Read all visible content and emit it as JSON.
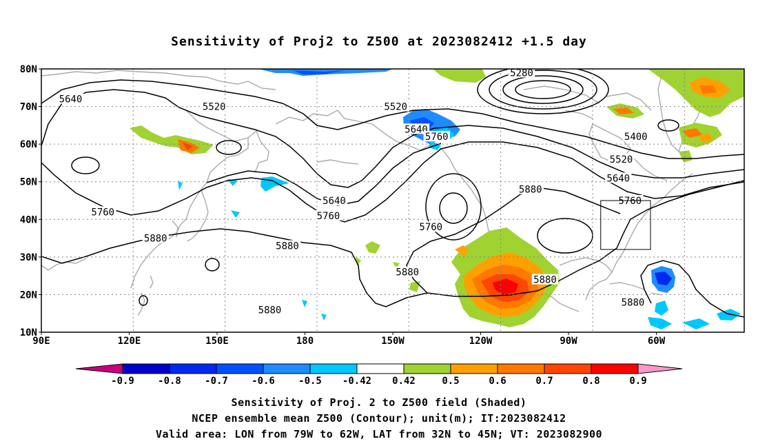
{
  "title": "Sensitivity of Proj2 to Z500 at 2023082412 +1.5 day",
  "axes": {
    "lat_labels": [
      "80N",
      "70N",
      "60N",
      "50N",
      "40N",
      "30N",
      "20N",
      "10N"
    ],
    "lon_labels": [
      "90E",
      "120E",
      "150E",
      "180",
      "150W",
      "120W",
      "90W",
      "60W"
    ]
  },
  "contour_labels": [
    {
      "text": "5280",
      "lon": -106,
      "lat": 79
    },
    {
      "text": "5520",
      "lon": 149,
      "lat": 70
    },
    {
      "text": "5520",
      "lon": -149,
      "lat": 70
    },
    {
      "text": "5640",
      "lon": 100,
      "lat": 72
    },
    {
      "text": "5640",
      "lon": -142,
      "lat": 64
    },
    {
      "text": "5760",
      "lon": -135,
      "lat": 62
    },
    {
      "text": "5400",
      "lon": -67,
      "lat": 62
    },
    {
      "text": "5520",
      "lon": -72,
      "lat": 56
    },
    {
      "text": "5640",
      "lon": -73,
      "lat": 51
    },
    {
      "text": "5760",
      "lon": -69,
      "lat": 45
    },
    {
      "text": "5880",
      "lon": -103,
      "lat": 48
    },
    {
      "text": "5640",
      "lon": -170,
      "lat": 45
    },
    {
      "text": "5760",
      "lon": -172,
      "lat": 41
    },
    {
      "text": "5760",
      "lon": -137,
      "lat": 38
    },
    {
      "text": "5760",
      "lon": 111,
      "lat": 42
    },
    {
      "text": "5880",
      "lon": 129,
      "lat": 35
    },
    {
      "text": "5880",
      "lon": 174,
      "lat": 33
    },
    {
      "text": "5880",
      "lon": -145,
      "lat": 26
    },
    {
      "text": "5880",
      "lon": -98,
      "lat": 24
    },
    {
      "text": "5880",
      "lon": 168,
      "lat": 16
    },
    {
      "text": "5880",
      "lon": -68,
      "lat": 18
    }
  ],
  "valid_box": {
    "lon_min": -79,
    "lon_max": -62,
    "lat_min": 32,
    "lat_max": 45
  },
  "colorbar": {
    "labels": [
      "-0.9",
      "-0.8",
      "-0.7",
      "-0.6",
      "-0.5",
      "-0.42",
      "0.42",
      "0.5",
      "0.6",
      "0.7",
      "0.8",
      "0.9"
    ],
    "colors": [
      "#0000c8",
      "#0028f0",
      "#0050ff",
      "#1e8cff",
      "#00c8ff",
      "#ffffff",
      "#a0d232",
      "#ffa000",
      "#ff7800",
      "#ff4600",
      "#ff0000"
    ],
    "low_color": "#c8007e",
    "high_color": "#ff96c8"
  },
  "caption": {
    "line1": "Sensitivity of Proj. 2 to Z500 field (Shaded)",
    "line2": "NCEP ensemble mean Z500 (Contour); unit(m); IT:2023082412",
    "line3": "Valid area: LON from 79W to 62W, LAT from 32N to 45N; VT: 2023082900"
  }
}
